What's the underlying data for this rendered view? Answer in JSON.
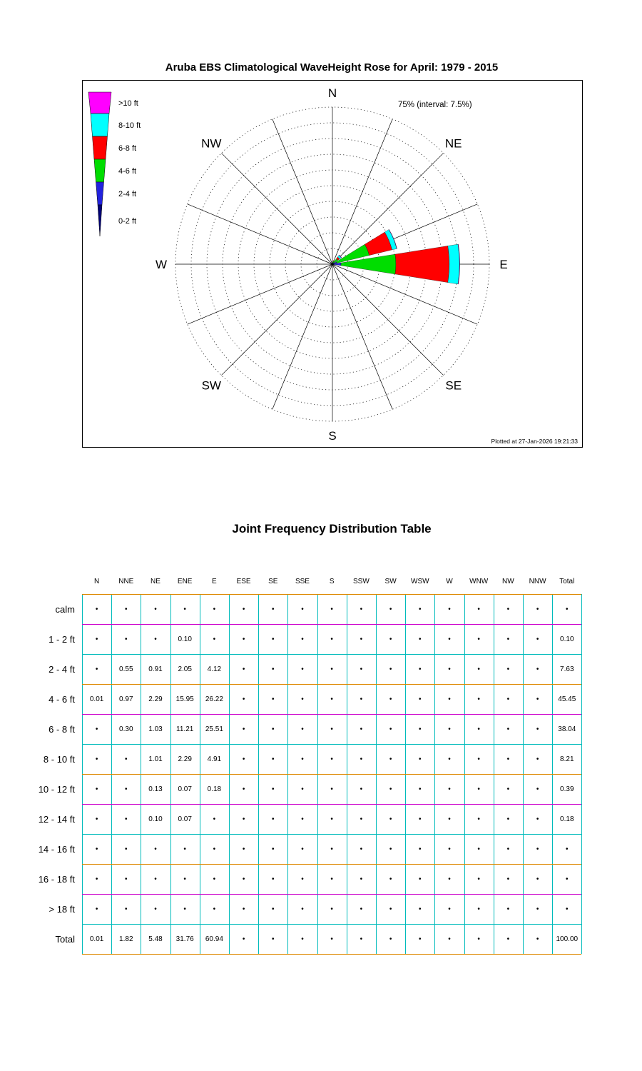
{
  "page": {
    "rose_title": "Aruba EBS Climatological WaveHeight Rose for April: 1979 - 2015",
    "table_title": "Joint Frequency Distribution Table"
  },
  "rose": {
    "annotation": "75% (interval: 7.5%)",
    "plotted_at": "Plotted at 27-Jan-2026 19:21:33",
    "num_rings": 10,
    "compass_labels": [
      "N",
      "NE",
      "E",
      "SE",
      "S",
      "SW",
      "W",
      "NW"
    ],
    "legend": [
      {
        "label": ">10 ft",
        "color": "#ff00ff"
      },
      {
        "label": "8-10 ft",
        "color": "#00ffff"
      },
      {
        "label": "6-8 ft",
        "color": "#ff0000"
      },
      {
        "label": "4-6 ft",
        "color": "#00dd00"
      },
      {
        "label": "2-4 ft",
        "color": "#2222dd"
      },
      {
        "label": "0-2 ft",
        "color": "#000077"
      }
    ]
  },
  "chart_data": {
    "type": "rose",
    "title": "Aruba EBS Climatological WaveHeight Rose for April: 1979 - 2015",
    "units": "percent occurrence",
    "radial_max": 75,
    "radial_interval": 7.5,
    "legend_position": "top-left",
    "directions": [
      "N",
      "NNE",
      "NE",
      "ENE",
      "E",
      "ESE",
      "SE",
      "SSE",
      "S",
      "SSW",
      "SW",
      "WSW",
      "W",
      "WNW",
      "NW",
      "NNW"
    ],
    "series": [
      {
        "name": "0-2 ft",
        "color": "#000077",
        "values": [
          0,
          0,
          0,
          0.1,
          0,
          0,
          0,
          0,
          0,
          0,
          0,
          0,
          0,
          0,
          0,
          0
        ]
      },
      {
        "name": "2-4 ft",
        "color": "#2222dd",
        "values": [
          0,
          0.55,
          0.91,
          2.05,
          4.12,
          0,
          0,
          0,
          0,
          0,
          0,
          0,
          0,
          0,
          0,
          0
        ]
      },
      {
        "name": "4-6 ft",
        "color": "#00dd00",
        "values": [
          0.01,
          0.97,
          2.29,
          15.95,
          26.22,
          0,
          0,
          0,
          0,
          0,
          0,
          0,
          0,
          0,
          0,
          0
        ]
      },
      {
        "name": "6-8 ft",
        "color": "#ff0000",
        "values": [
          0,
          0.3,
          1.03,
          11.21,
          25.51,
          0,
          0,
          0,
          0,
          0,
          0,
          0,
          0,
          0,
          0,
          0
        ]
      },
      {
        "name": "8-10 ft",
        "color": "#00ffff",
        "values": [
          0,
          0,
          1.01,
          2.29,
          4.91,
          0,
          0,
          0,
          0,
          0,
          0,
          0,
          0,
          0,
          0,
          0
        ]
      },
      {
        "name": ">10 ft",
        "color": "#ff00ff",
        "values": [
          0,
          0,
          0.23,
          0.14,
          0.18,
          0,
          0,
          0,
          0,
          0,
          0,
          0,
          0,
          0,
          0,
          0
        ]
      }
    ]
  },
  "table": {
    "columns": [
      "N",
      "NNE",
      "NE",
      "ENE",
      "E",
      "ESE",
      "SE",
      "SSE",
      "S",
      "SSW",
      "SW",
      "WSW",
      "W",
      "WNW",
      "NW",
      "NNW",
      "Total"
    ],
    "dot": "•",
    "grid": {
      "vertical_color": "#00bbbb",
      "horizontal_colors": [
        "#dd8800",
        "#cc00cc",
        "#00bbbb"
      ]
    },
    "rows": [
      {
        "label": "calm",
        "cells": [
          "•",
          "•",
          "•",
          "•",
          "•",
          "•",
          "•",
          "•",
          "•",
          "•",
          "•",
          "•",
          "•",
          "•",
          "•",
          "•",
          "•"
        ]
      },
      {
        "label": "1 - 2  ft",
        "cells": [
          "•",
          "•",
          "•",
          "0.10",
          "•",
          "•",
          "•",
          "•",
          "•",
          "•",
          "•",
          "•",
          "•",
          "•",
          "•",
          "•",
          "0.10"
        ]
      },
      {
        "label": "2 - 4  ft",
        "cells": [
          "•",
          "0.55",
          "0.91",
          "2.05",
          "4.12",
          "•",
          "•",
          "•",
          "•",
          "•",
          "•",
          "•",
          "•",
          "•",
          "•",
          "•",
          "7.63"
        ]
      },
      {
        "label": "4 - 6  ft",
        "cells": [
          "0.01",
          "0.97",
          "2.29",
          "15.95",
          "26.22",
          "•",
          "•",
          "•",
          "•",
          "•",
          "•",
          "•",
          "•",
          "•",
          "•",
          "•",
          "45.45"
        ]
      },
      {
        "label": "6 - 8  ft",
        "cells": [
          "•",
          "0.30",
          "1.03",
          "11.21",
          "25.51",
          "•",
          "•",
          "•",
          "•",
          "•",
          "•",
          "•",
          "•",
          "•",
          "•",
          "•",
          "38.04"
        ]
      },
      {
        "label": "8 - 10 ft",
        "cells": [
          "•",
          "•",
          "1.01",
          "2.29",
          "4.91",
          "•",
          "•",
          "•",
          "•",
          "•",
          "•",
          "•",
          "•",
          "•",
          "•",
          "•",
          "8.21"
        ]
      },
      {
        "label": "10 - 12 ft",
        "cells": [
          "•",
          "•",
          "0.13",
          "0.07",
          "0.18",
          "•",
          "•",
          "•",
          "•",
          "•",
          "•",
          "•",
          "•",
          "•",
          "•",
          "•",
          "0.39"
        ]
      },
      {
        "label": "12 - 14 ft",
        "cells": [
          "•",
          "•",
          "0.10",
          "0.07",
          "•",
          "•",
          "•",
          "•",
          "•",
          "•",
          "•",
          "•",
          "•",
          "•",
          "•",
          "•",
          "0.18"
        ]
      },
      {
        "label": "14 - 16 ft",
        "cells": [
          "•",
          "•",
          "•",
          "•",
          "•",
          "•",
          "•",
          "•",
          "•",
          "•",
          "•",
          "•",
          "•",
          "•",
          "•",
          "•",
          "•"
        ]
      },
      {
        "label": "16 - 18 ft",
        "cells": [
          "•",
          "•",
          "•",
          "•",
          "•",
          "•",
          "•",
          "•",
          "•",
          "•",
          "•",
          "•",
          "•",
          "•",
          "•",
          "•",
          "•"
        ]
      },
      {
        "label": "> 18  ft",
        "cells": [
          "•",
          "•",
          "•",
          "•",
          "•",
          "•",
          "•",
          "•",
          "•",
          "•",
          "•",
          "•",
          "•",
          "•",
          "•",
          "•",
          "•"
        ]
      },
      {
        "label": "Total",
        "cells": [
          "0.01",
          "1.82",
          "5.48",
          "31.76",
          "60.94",
          "•",
          "•",
          "•",
          "•",
          "•",
          "•",
          "•",
          "•",
          "•",
          "•",
          "•",
          "100.00"
        ]
      }
    ]
  }
}
